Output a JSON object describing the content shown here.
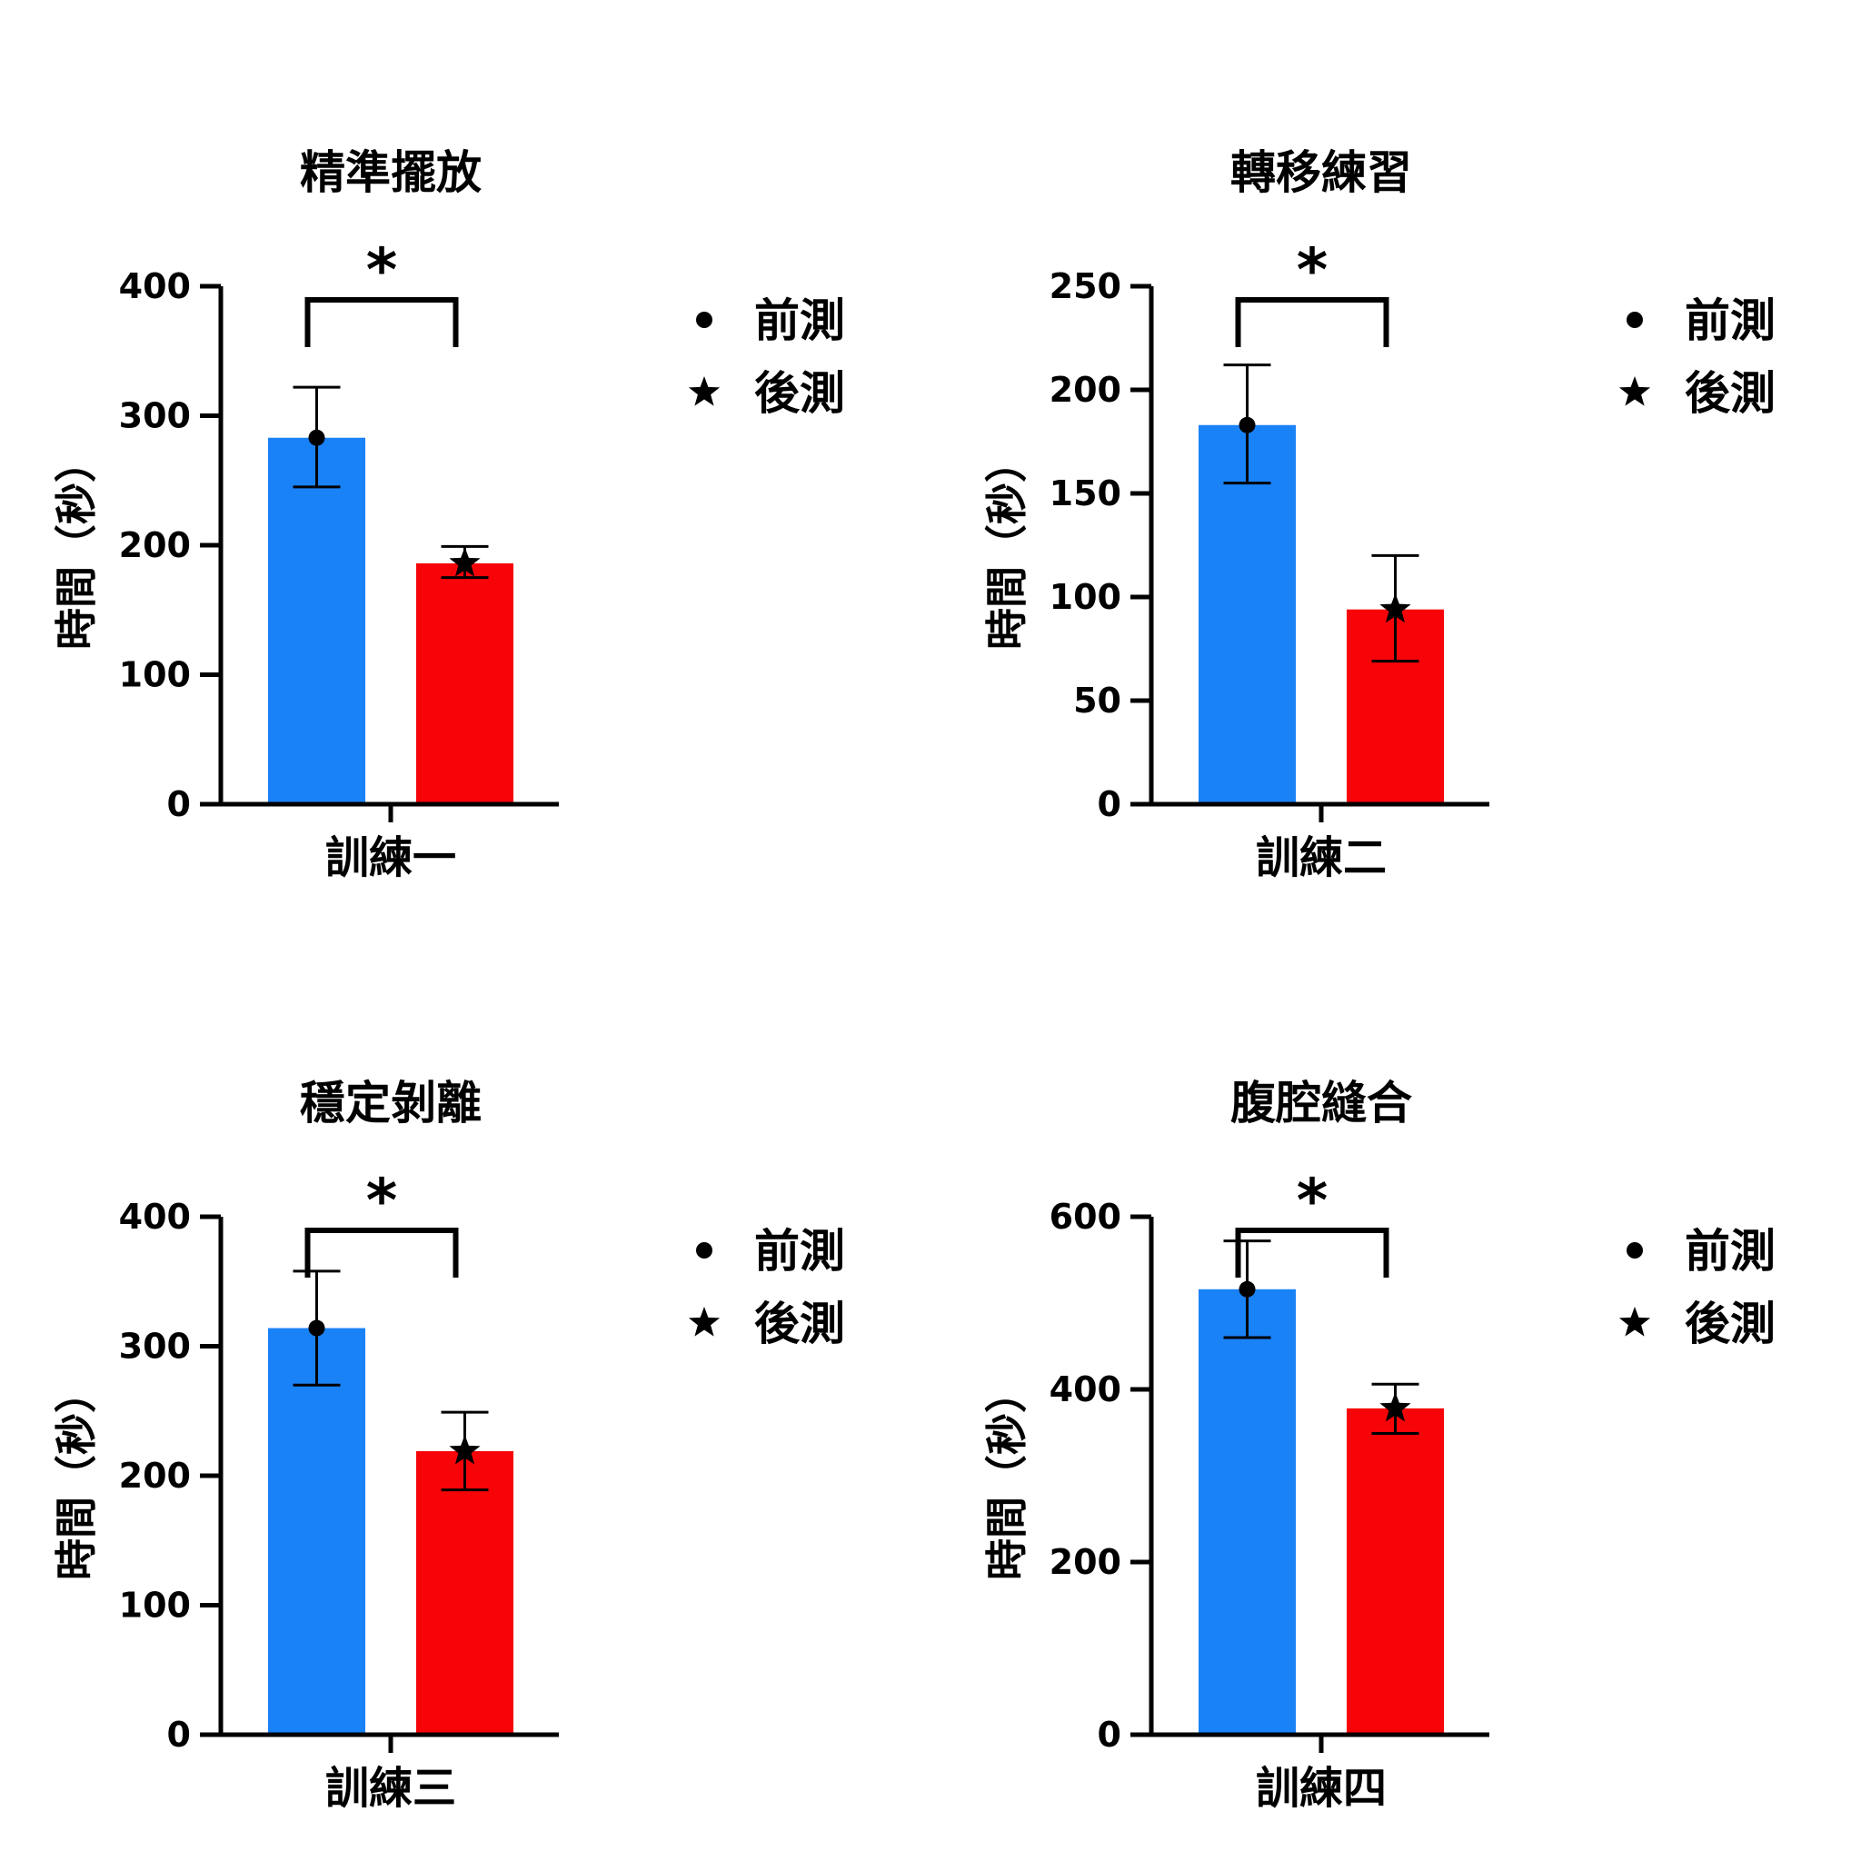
{
  "chart_data": [
    {
      "type": "bar",
      "title": "精準擺放",
      "ylabel": "時間（秒）",
      "categories": [
        "訓練一"
      ],
      "ylim": [
        0,
        400
      ],
      "yticks": [
        0,
        100,
        200,
        300,
        400
      ],
      "series": [
        {
          "name": "前測",
          "values": [
            283
          ],
          "error_low": [
            245
          ],
          "error_high": [
            322
          ],
          "color": "#1a82f7",
          "marker": "●"
        },
        {
          "name": "後測",
          "values": [
            186
          ],
          "error_low": [
            175
          ],
          "error_high": [
            199
          ],
          "color": "#f70409",
          "marker": "★"
        }
      ],
      "significance": "*",
      "legend": "right"
    },
    {
      "type": "bar",
      "title": "轉移練習",
      "ylabel": "時間（秒）",
      "categories": [
        "訓練二"
      ],
      "ylim": [
        0,
        250
      ],
      "yticks": [
        0,
        50,
        100,
        150,
        200,
        250
      ],
      "series": [
        {
          "name": "前測",
          "values": [
            183
          ],
          "error_low": [
            155
          ],
          "error_high": [
            212
          ],
          "color": "#1a82f7",
          "marker": "●"
        },
        {
          "name": "後測",
          "values": [
            94
          ],
          "error_low": [
            69
          ],
          "error_high": [
            120
          ],
          "color": "#f70409",
          "marker": "★"
        }
      ],
      "significance": "*",
      "legend": "right"
    },
    {
      "type": "bar",
      "title": "穩定剝離",
      "ylabel": "時間（秒）",
      "categories": [
        "訓練三"
      ],
      "ylim": [
        0,
        400
      ],
      "yticks": [
        0,
        100,
        200,
        300,
        400
      ],
      "series": [
        {
          "name": "前測",
          "values": [
            314
          ],
          "error_low": [
            270
          ],
          "error_high": [
            358
          ],
          "color": "#1a82f7",
          "marker": "●"
        },
        {
          "name": "後測",
          "values": [
            219
          ],
          "error_low": [
            189
          ],
          "error_high": [
            249
          ],
          "color": "#f70409",
          "marker": "★"
        }
      ],
      "significance": "*",
      "legend": "right"
    },
    {
      "type": "bar",
      "title": "腹腔縫合",
      "ylabel": "時間（秒）",
      "categories": [
        "訓練四"
      ],
      "ylim": [
        0,
        600
      ],
      "yticks": [
        0,
        200,
        400,
        600
      ],
      "series": [
        {
          "name": "前測",
          "values": [
            516
          ],
          "error_low": [
            460
          ],
          "error_high": [
            572
          ],
          "color": "#1a82f7",
          "marker": "●"
        },
        {
          "name": "後測",
          "values": [
            378
          ],
          "error_low": [
            349
          ],
          "error_high": [
            406
          ],
          "color": "#f70409",
          "marker": "★"
        }
      ],
      "significance": "*",
      "legend": "right"
    }
  ]
}
